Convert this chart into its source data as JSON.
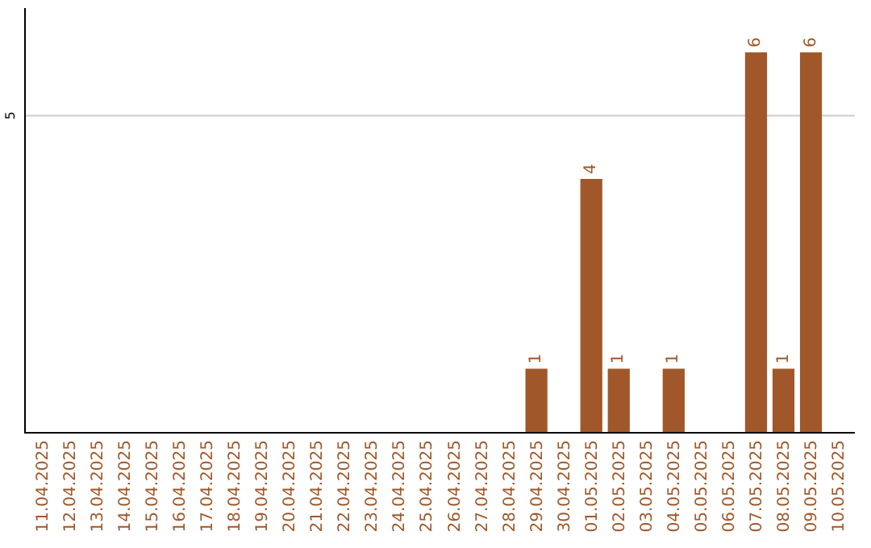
{
  "chart_data": {
    "type": "bar",
    "categories": [
      "11.04.2025",
      "12.04.2025",
      "13.04.2025",
      "14.04.2025",
      "15.04.2025",
      "16.04.2025",
      "17.04.2025",
      "18.04.2025",
      "19.04.2025",
      "20.04.2025",
      "21.04.2025",
      "22.04.2025",
      "23.04.2025",
      "24.04.2025",
      "25.04.2025",
      "26.04.2025",
      "27.04.2025",
      "28.04.2025",
      "29.04.2025",
      "30.04.2025",
      "01.05.2025",
      "02.05.2025",
      "03.05.2025",
      "04.05.2025",
      "05.05.2025",
      "06.05.2025",
      "07.05.2025",
      "08.05.2025",
      "09.05.2025",
      "10.05.2025"
    ],
    "values": [
      null,
      null,
      null,
      null,
      null,
      null,
      null,
      null,
      null,
      null,
      null,
      null,
      null,
      null,
      null,
      null,
      null,
      null,
      1,
      null,
      4,
      1,
      null,
      1,
      null,
      null,
      6,
      1,
      6,
      null
    ],
    "value_labels": [
      null,
      null,
      null,
      null,
      null,
      null,
      null,
      null,
      null,
      null,
      null,
      null,
      null,
      null,
      null,
      null,
      null,
      null,
      "1",
      null,
      "4",
      "1",
      null,
      "1",
      null,
      null,
      "6",
      "1",
      "6",
      null
    ],
    "ylim": [
      0,
      6.7
    ],
    "ref_lines": [
      {
        "axis": "y",
        "value": 5,
        "label": "5",
        "color": "#cccccc"
      }
    ],
    "color": "#a0582a",
    "legend": false
  }
}
